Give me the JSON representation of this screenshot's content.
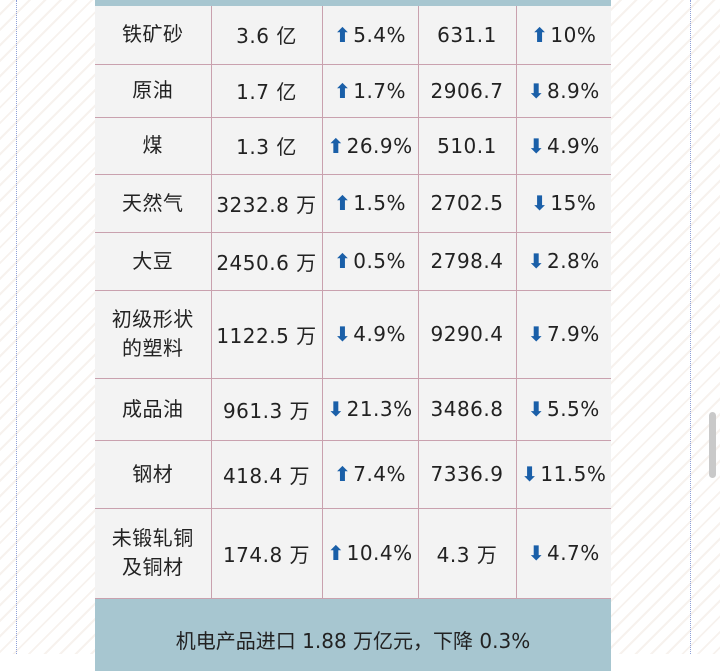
{
  "colors": {
    "header_bar": "#a7c6d0",
    "cell_background": "#f3f3f3",
    "grid_line": "#c9a1ae",
    "arrow_blue": "#1a5fa8"
  },
  "rows": [
    {
      "name_lines": [
        "铁矿砂"
      ],
      "volume": "3.6 亿",
      "vol_dir": "up",
      "vol_change": "5.4%",
      "price": "631.1",
      "price_dir": "up",
      "price_change": "10%"
    },
    {
      "name_lines": [
        "原油"
      ],
      "volume": "1.7 亿",
      "vol_dir": "up",
      "vol_change": "1.7%",
      "price": "2906.7",
      "price_dir": "down",
      "price_change": "8.9%"
    },
    {
      "name_lines": [
        "煤"
      ],
      "volume": "1.3 亿",
      "vol_dir": "up",
      "vol_change": "26.9%",
      "price": "510.1",
      "price_dir": "down",
      "price_change": "4.9%"
    },
    {
      "name_lines": [
        "天然气"
      ],
      "volume": "3232.8 万",
      "vol_dir": "up",
      "vol_change": "1.5%",
      "price": "2702.5",
      "price_dir": "down",
      "price_change": "15%"
    },
    {
      "name_lines": [
        "大豆"
      ],
      "volume": "2450.6 万",
      "vol_dir": "up",
      "vol_change": "0.5%",
      "price": "2798.4",
      "price_dir": "down",
      "price_change": "2.8%"
    },
    {
      "name_lines": [
        "初级形状",
        "的塑料"
      ],
      "volume": "1122.5 万",
      "vol_dir": "down",
      "vol_change": "4.9%",
      "price": "9290.4",
      "price_dir": "down",
      "price_change": "7.9%"
    },
    {
      "name_lines": [
        "成品油"
      ],
      "volume": "961.3 万",
      "vol_dir": "down",
      "vol_change": "21.3%",
      "price": "3486.8",
      "price_dir": "down",
      "price_change": "5.5%"
    },
    {
      "name_lines": [
        "钢材"
      ],
      "volume": "418.4 万",
      "vol_dir": "up",
      "vol_change": "7.4%",
      "price": "7336.9",
      "price_dir": "down",
      "price_change": "11.5%"
    },
    {
      "name_lines": [
        "未锻轧铜",
        "及铜材"
      ],
      "volume": "174.8 万",
      "vol_dir": "up",
      "vol_change": "10.4%",
      "price": "4.3 万",
      "price_dir": "down",
      "price_change": "4.7%"
    }
  ],
  "footer": {
    "text": "机电产品进口 1.88 万亿元，下降 0.3%"
  }
}
